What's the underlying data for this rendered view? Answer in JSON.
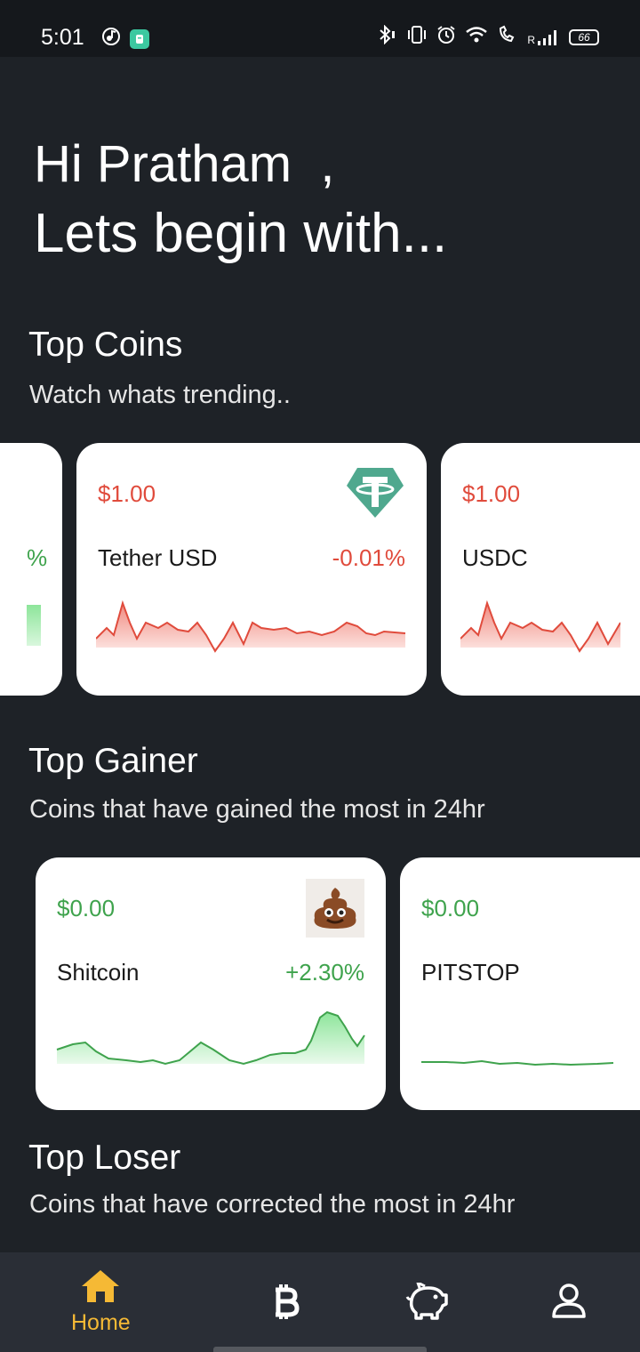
{
  "status_bar": {
    "time": "5:01",
    "battery": "66",
    "signal_label": "R"
  },
  "greeting": {
    "line1": "Hi Pratham  ,",
    "line2": "Lets begin with..."
  },
  "top_coins": {
    "title": "Top Coins",
    "subtitle": "Watch whats trending..",
    "partial_left_change": "%",
    "cards": [
      {
        "price": "$1.00",
        "name": "Tether USD",
        "change": "-0.01%",
        "logo": "tether-logo-icon",
        "color": "#e04b3c"
      },
      {
        "price": "$1.00",
        "name": "USDC",
        "change": "",
        "logo": "",
        "color": "#e04b3c"
      }
    ]
  },
  "top_gainer": {
    "title": "Top Gainer",
    "subtitle": "Coins that have gained the most in 24hr",
    "cards": [
      {
        "price": "$0.00",
        "name": "Shitcoin",
        "change": "+2.30%",
        "logo": "poop-emoji-icon",
        "color": "#3fa34d"
      },
      {
        "price": "$0.00",
        "name": "PITSTOP",
        "change": "",
        "logo": "",
        "color": "#3fa34d"
      }
    ]
  },
  "top_loser": {
    "title": "Top Loser",
    "subtitle": "Coins that have corrected the most in 24hr"
  },
  "bottom_nav": {
    "items": [
      {
        "label": "Home",
        "icon": "home-icon",
        "active": true
      },
      {
        "label": "",
        "icon": "bitcoin-icon",
        "active": false
      },
      {
        "label": "",
        "icon": "piggy-bank-icon",
        "active": false
      },
      {
        "label": "",
        "icon": "profile-icon",
        "active": false
      }
    ],
    "active_color": "#f5b935"
  }
}
